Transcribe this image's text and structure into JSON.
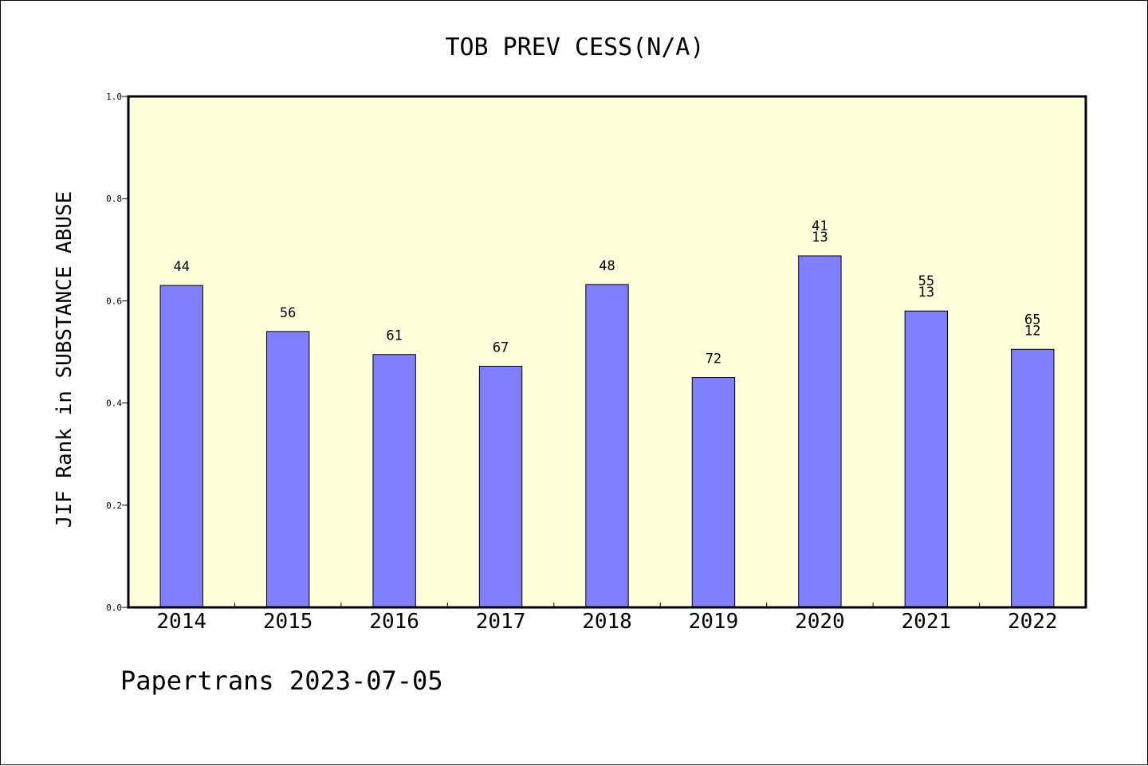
{
  "chart_data": {
    "type": "bar",
    "title": "TOB PREV CESS(N/A)",
    "ylabel": "JIF Rank in SUBSTANCE ABUSE",
    "xlabel": "",
    "ylim": [
      0,
      1.0
    ],
    "yticks": [
      "0.0",
      "0.2",
      "0.4",
      "0.6",
      "0.8",
      "1.0"
    ],
    "categories": [
      "2014",
      "2015",
      "2016",
      "2017",
      "2018",
      "2019",
      "2020",
      "2021",
      "2022"
    ],
    "values": [
      0.63,
      0.54,
      0.495,
      0.472,
      0.632,
      0.45,
      0.688,
      0.58,
      0.505
    ],
    "labels": [
      [
        "44"
      ],
      [
        "56"
      ],
      [
        "61"
      ],
      [
        "67"
      ],
      [
        "48"
      ],
      [
        "72"
      ],
      [
        "41",
        "13"
      ],
      [
        "55",
        "13"
      ],
      [
        "65",
        "12"
      ]
    ],
    "grid": false,
    "colors": {
      "plot_background": "#ffffd9",
      "bar_fill": "#8080ff",
      "bar_stroke": "#000000"
    }
  },
  "footer": "Papertrans 2023-07-05"
}
